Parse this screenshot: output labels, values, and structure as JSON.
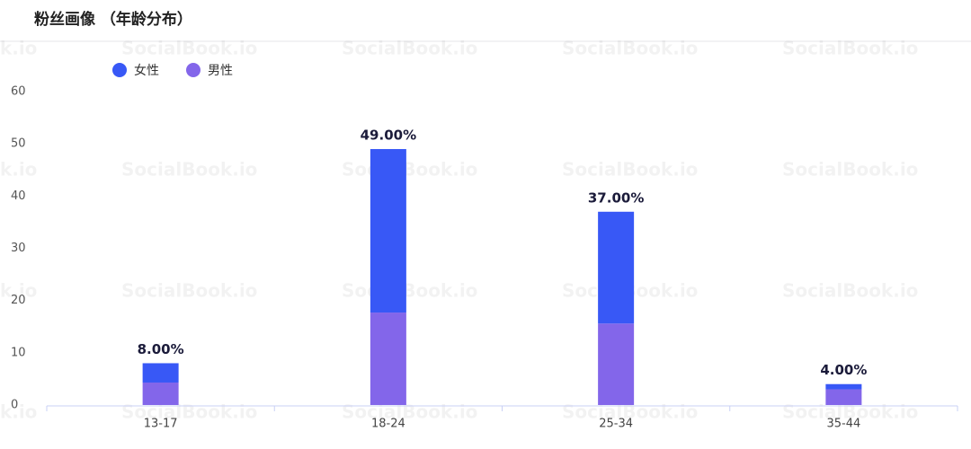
{
  "chart_data": {
    "type": "stacked-bar",
    "title": "粉丝画像 （年龄分布）",
    "watermark": "SocialBook.io",
    "categories": [
      "13-17",
      "18-24",
      "25-34",
      "35-44"
    ],
    "series": [
      {
        "name": "女性",
        "color": "#3858f6",
        "values": [
          3.7,
          31.3,
          21.4,
          1.0
        ]
      },
      {
        "name": "男性",
        "color": "#8366ea",
        "values": [
          4.3,
          17.7,
          15.6,
          3.0
        ]
      }
    ],
    "totals": [
      8,
      49,
      37,
      4
    ],
    "total_labels": [
      "8.00%",
      "49.00%",
      "37.00%",
      "4.00%"
    ],
    "ylim": [
      0,
      60
    ],
    "yticks": [
      0,
      10,
      20,
      30,
      40,
      50,
      60
    ],
    "grid": false,
    "legend": "top-left"
  }
}
